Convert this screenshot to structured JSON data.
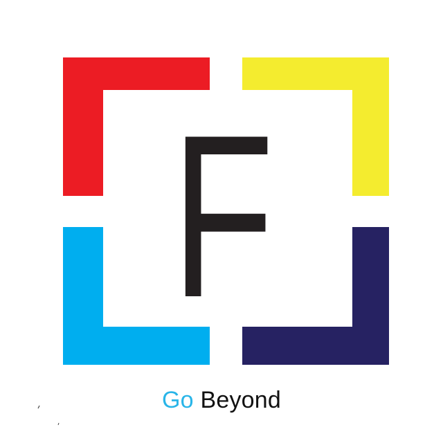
{
  "logo": {
    "letter": "F",
    "colors": {
      "top_left": "#ec1c24",
      "top_right": "#f4ec2f",
      "bottom_left": "#00aeef",
      "bottom_right": "#262262",
      "letter": "#231f20",
      "background": "#ffffff"
    }
  },
  "tagline": {
    "word1": "Go",
    "word2": "Beyond",
    "word1_color": "#29b5e8",
    "word2_color": "#111111"
  }
}
